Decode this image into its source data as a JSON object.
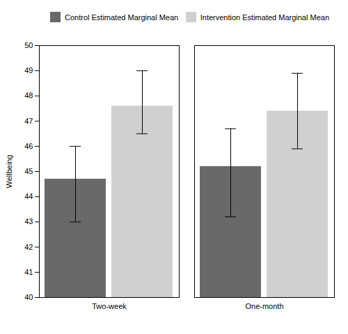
{
  "chart_data": {
    "type": "bar",
    "categories": [
      "Two-week",
      "One-month"
    ],
    "series": [
      {
        "name": "Control Estimated Marginal Mean",
        "color": "#696969",
        "values": [
          44.7,
          45.2
        ],
        "ci_lower": [
          43.0,
          43.2
        ],
        "ci_upper": [
          46.0,
          46.7
        ]
      },
      {
        "name": "Intervention Estimated Marginal Mean",
        "color": "#d0d0d0",
        "values": [
          47.6,
          47.4
        ],
        "ci_lower": [
          46.5,
          45.9
        ],
        "ci_upper": [
          49.0,
          48.9
        ]
      }
    ],
    "ylabel": "Wellbeing",
    "ylim": [
      40,
      50
    ],
    "yticks": [
      40,
      41,
      42,
      43,
      44,
      45,
      46,
      47,
      48,
      49,
      50
    ],
    "legend": "upper right"
  }
}
